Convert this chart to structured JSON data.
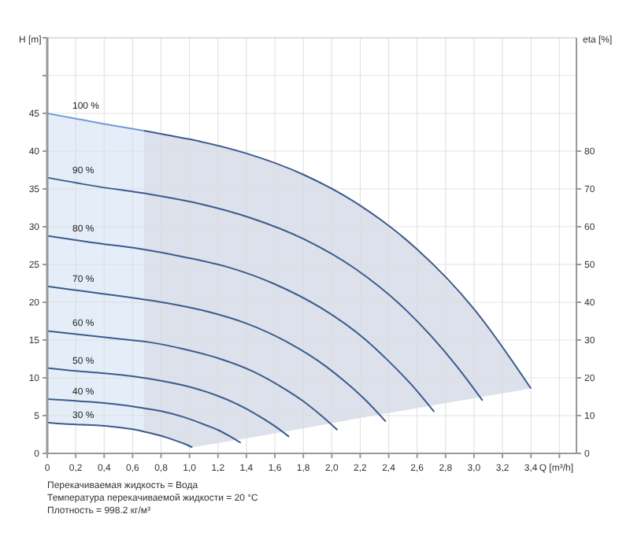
{
  "chart_data": {
    "type": "line",
    "xlabel": "Q [m³/h]",
    "ylabel": "H [m]",
    "y2label": "eta [%]",
    "xlim": [
      0,
      3.72
    ],
    "ylim": [
      0,
      55
    ],
    "y2lim": [
      0,
      110
    ],
    "xticks": [
      0,
      {
        "value": 0.2,
        "label": "0,2"
      },
      {
        "value": 0.4,
        "label": "0,4"
      },
      {
        "value": 0.6,
        "label": "0,6"
      },
      {
        "value": 0.8,
        "label": "0,8"
      },
      {
        "value": 1.0,
        "label": "1,0"
      },
      {
        "value": 1.2,
        "label": "1,2"
      },
      {
        "value": 1.4,
        "label": "1,4"
      },
      {
        "value": 1.6,
        "label": "1,6"
      },
      {
        "value": 1.8,
        "label": "1,8"
      },
      {
        "value": 2.0,
        "label": "2,0"
      },
      {
        "value": 2.2,
        "label": "2,2"
      },
      {
        "value": 2.4,
        "label": "2,4"
      },
      {
        "value": 2.6,
        "label": "2,6"
      },
      {
        "value": 2.8,
        "label": "2,8"
      },
      {
        "value": 3.0,
        "label": "3,0"
      },
      {
        "value": 3.2,
        "label": "3,2"
      },
      {
        "value": 3.4,
        "label": "3,4"
      },
      {
        "value": 3.6,
        "label": null
      }
    ],
    "yticks": [
      0,
      5,
      10,
      15,
      20,
      25,
      30,
      35,
      40,
      45,
      {
        "value": 50,
        "label": null
      },
      {
        "value": 55,
        "label": null
      }
    ],
    "y2ticks": [
      0,
      10,
      20,
      30,
      40,
      50,
      60,
      70,
      80
    ],
    "grid": true,
    "marker": "none",
    "line_style": "solid",
    "series": [
      {
        "name": "100 %",
        "color": "#6e9bd6",
        "x": [
          0,
          0.2,
          0.4,
          0.68
        ],
        "values": [
          45,
          44.3,
          43.6,
          42.7
        ],
        "lower": [
          4.1,
          3.8,
          3.6,
          2.9
        ],
        "upper": [
          45,
          44.3,
          43.6,
          42.7
        ]
      },
      {
        "color": "#3b5b8e",
        "x": [
          0.68,
          0.85,
          1.02,
          1.4,
          1.8,
          2.2,
          2.6,
          3.0,
          3.4
        ],
        "values": [
          42.7,
          42.1,
          41.5,
          39.7,
          36.9,
          32.8,
          27.0,
          19.1,
          8.6
        ],
        "lower": [
          2.9,
          2.0,
          0.8,
          2.0,
          3.3,
          4.7,
          6.0,
          7.3,
          8.6
        ],
        "upper": [
          42.7,
          42.1,
          41.5,
          39.7,
          36.9,
          32.8,
          27.0,
          19.1,
          8.6
        ]
      },
      {
        "name": "90 %",
        "color": "#3b5b8e",
        "x": [
          0,
          0.36,
          0.72,
          1.08,
          1.44,
          1.8,
          2.16,
          2.52,
          2.7,
          2.88,
          3.06
        ],
        "values": [
          36.5,
          35.3,
          34.3,
          33.0,
          31.1,
          28.4,
          24.5,
          19.0,
          15.5,
          11.5,
          7.0
        ]
      },
      {
        "name": "80 %",
        "color": "#3b5b8e",
        "x": [
          0,
          0.32,
          0.64,
          0.96,
          1.28,
          1.6,
          1.92,
          2.24,
          2.4,
          2.56,
          2.72
        ],
        "values": [
          28.8,
          27.9,
          27.1,
          26.0,
          24.6,
          22.4,
          19.3,
          15.0,
          12.2,
          9.1,
          5.5
        ]
      },
      {
        "name": "70 %",
        "color": "#3b5b8e",
        "x": [
          0,
          0.28,
          0.56,
          0.84,
          1.12,
          1.4,
          1.68,
          1.96,
          2.1,
          2.24,
          2.38
        ],
        "values": [
          22.1,
          21.4,
          20.7,
          19.9,
          18.8,
          17.2,
          14.8,
          11.5,
          9.4,
          7.0,
          4.2
        ]
      },
      {
        "name": "60 %",
        "color": "#3b5b8e",
        "x": [
          0,
          0.24,
          0.48,
          0.72,
          0.96,
          1.2,
          1.44,
          1.68,
          1.8,
          1.92,
          2.04
        ],
        "values": [
          16.2,
          15.7,
          15.2,
          14.7,
          13.8,
          12.6,
          10.9,
          8.4,
          6.9,
          5.1,
          3.1
        ]
      },
      {
        "name": "50 %",
        "color": "#3b5b8e",
        "x": [
          0,
          0.2,
          0.4,
          0.6,
          0.8,
          1.0,
          1.2,
          1.4,
          1.5,
          1.6,
          1.7
        ],
        "values": [
          11.3,
          10.9,
          10.6,
          10.2,
          9.6,
          8.8,
          7.6,
          5.9,
          4.8,
          3.6,
          2.2
        ]
      },
      {
        "name": "40 %",
        "color": "#3b5b8e",
        "x": [
          0,
          0.16,
          0.32,
          0.48,
          0.64,
          0.8,
          0.96,
          1.12,
          1.2,
          1.28,
          1.36
        ],
        "values": [
          7.2,
          7.0,
          6.8,
          6.5,
          6.1,
          5.6,
          4.8,
          3.7,
          3.1,
          2.3,
          1.4
        ]
      },
      {
        "name": "30 %",
        "color": "#3b5b8e",
        "x": [
          0,
          0.12,
          0.24,
          0.36,
          0.48,
          0.6,
          0.72,
          0.84,
          0.9,
          0.96,
          1.02
        ],
        "values": [
          4.1,
          3.9,
          3.8,
          3.7,
          3.5,
          3.2,
          2.7,
          2.1,
          1.7,
          1.3,
          0.8
        ]
      }
    ],
    "annotations": [
      "Перекачиваемая жидкость = Вода",
      "Температура перекачиваемой жидкости = 20 °C",
      "Плотность = 998.2 кг/м³"
    ]
  }
}
